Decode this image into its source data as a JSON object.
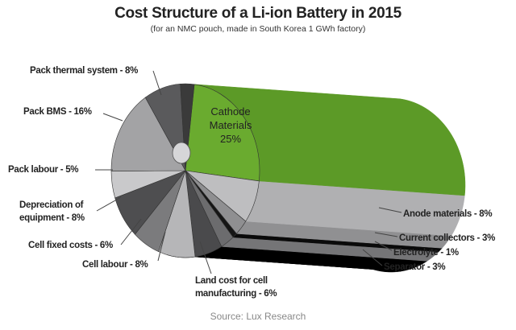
{
  "chart_data": {
    "type": "pie",
    "title": "Cost Structure of a Li-ion Battery in 2015",
    "subtitle": "(for an NMC pouch, made in South Korea 1 GWh factory)",
    "source": "Source: Lux Research",
    "unit": "%",
    "slices": [
      {
        "name": "Cathode Materials",
        "value": 25,
        "label_line1": "Cathode",
        "label_line2": "Materials",
        "label_value": "25%",
        "color": "#6aab2f",
        "side": "#5c9a27"
      },
      {
        "name": "Anode materials",
        "value": 8,
        "label": "Anode materials - 8%",
        "color": "#bebec0",
        "side": "#b0b0b2"
      },
      {
        "name": "Current collectors",
        "value": 3,
        "label": "Current collectors - 3%",
        "color": "#8f8f91",
        "side": "#909092"
      },
      {
        "name": "Electrolyte",
        "value": 1,
        "label": "Electrolyte  - 1%",
        "color": "#151515",
        "side": "#0a0a0a"
      },
      {
        "name": "Separator",
        "value": 3,
        "label": "Separator - 3%",
        "color": "#6c6c6e",
        "side": "#757577"
      },
      {
        "name": "Land cost for cell manufacturing",
        "value": 6,
        "label_line1": "Land cost for cell",
        "label_line2": "manufacturing - 6%",
        "color": "#4a4a4c",
        "side": "#000000"
      },
      {
        "name": "Cell labour",
        "value": 8,
        "label": "Cell labour - 8%",
        "color": "#b6b6b8",
        "side": "#000000"
      },
      {
        "name": "Cell fixed costs",
        "value": 6,
        "label": "Cell fixed costs - 6%",
        "color": "#7b7b7d",
        "side": "#000000"
      },
      {
        "name": "Depreciation of equipment",
        "value": 8,
        "label_line1": "Depreciation of",
        "label_line2": "equipment - 8%",
        "color": "#4e4e50",
        "side": "#000000"
      },
      {
        "name": "Pack labour",
        "value": 5,
        "label": "Pack labour - 5%",
        "color": "#c9c9cb",
        "side": "#000000"
      },
      {
        "name": "Pack BMS",
        "value": 16,
        "label": "Pack BMS - 16%",
        "color": "#a3a3a5",
        "side": "#000000"
      },
      {
        "name": "Pack thermal system",
        "value": 8,
        "label": "Pack thermal system - 8%",
        "color": "#5a5a5c",
        "side": "#000000"
      }
    ]
  }
}
